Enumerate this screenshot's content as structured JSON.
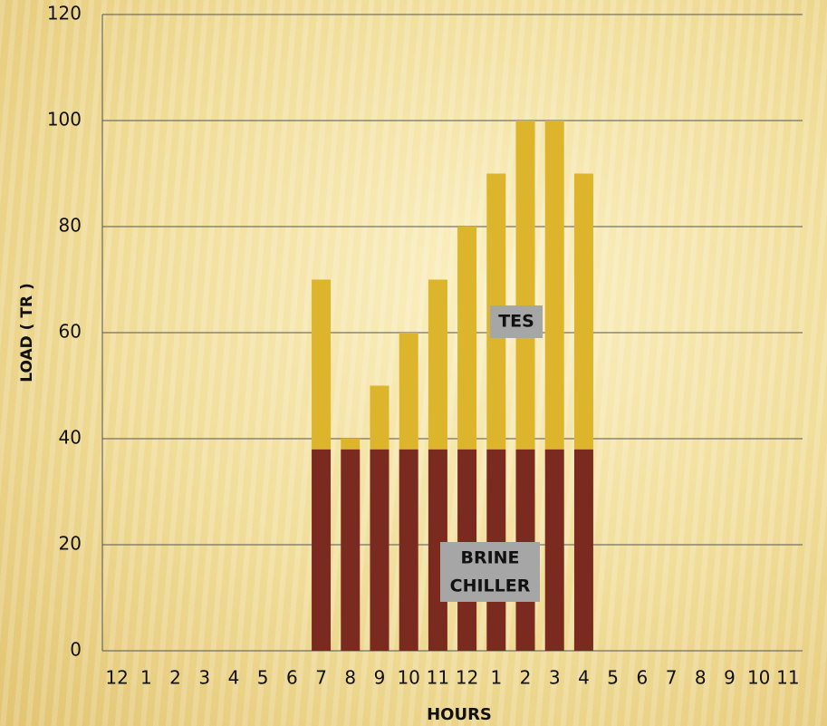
{
  "chart_data": {
    "type": "stacked_bar",
    "x_label": "HOURS",
    "y_label": "LOAD ( TR )",
    "categories": [
      "12",
      "1",
      "2",
      "3",
      "4",
      "5",
      "6",
      "7",
      "8",
      "9",
      "10",
      "11",
      "12",
      "1",
      "2",
      "3",
      "4",
      "5",
      "6",
      "7",
      "8",
      "9",
      "10",
      "11"
    ],
    "series": [
      {
        "name": "BRINE CHILLER",
        "color": "#7b2a1f",
        "values": [
          null,
          null,
          null,
          null,
          null,
          null,
          null,
          38,
          38,
          38,
          38,
          38,
          38,
          38,
          38,
          38,
          38,
          null,
          null,
          null,
          null,
          null,
          null,
          null
        ]
      },
      {
        "name": "TES",
        "color": "#dcb52c",
        "values": [
          null,
          null,
          null,
          null,
          null,
          null,
          null,
          32,
          2,
          12,
          22,
          32,
          42,
          52,
          62,
          62,
          52,
          null,
          null,
          null,
          null,
          null,
          null,
          null
        ]
      }
    ],
    "annotations": [
      {
        "lines": [
          "TES"
        ]
      },
      {
        "lines": [
          "BRINE",
          "CHILLER"
        ]
      }
    ],
    "ylim": [
      0,
      120
    ],
    "yticks": [
      0,
      20,
      40,
      60,
      80,
      100,
      120
    ],
    "grid": true
  }
}
